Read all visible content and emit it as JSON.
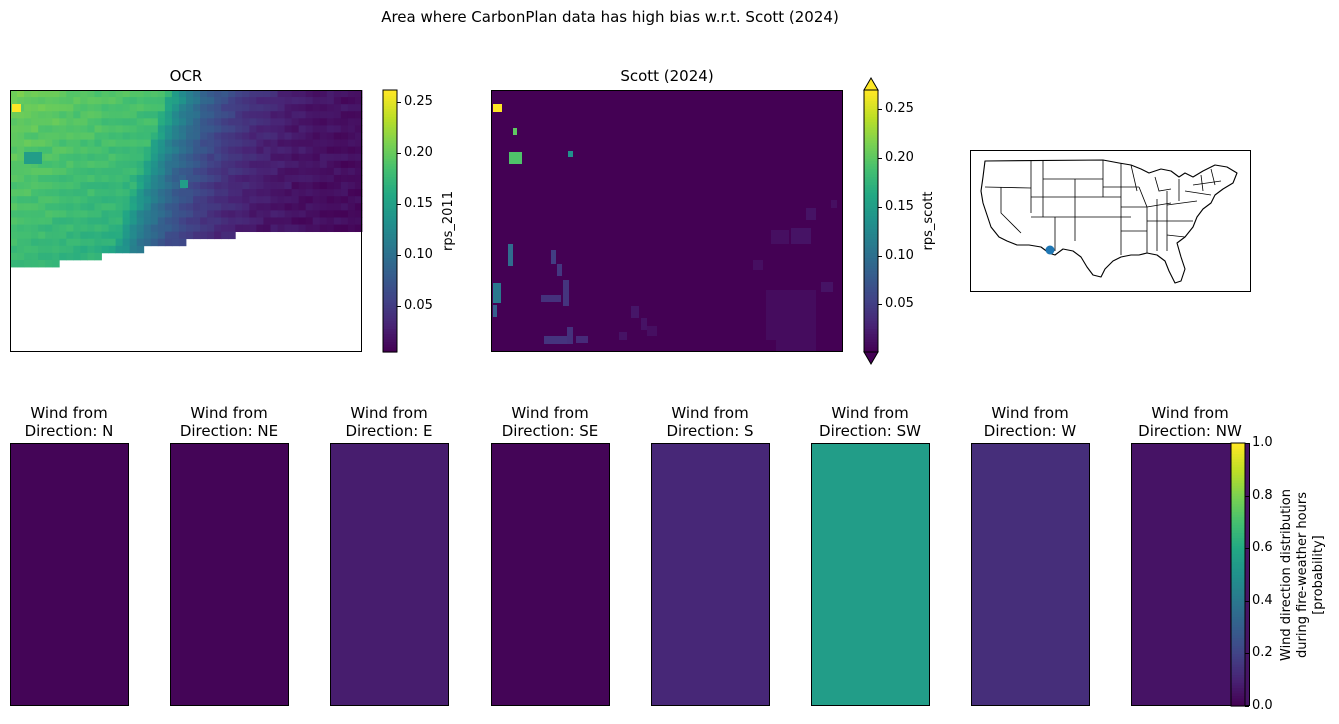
{
  "figure": {
    "title": "Area where CarbonPlan data has high bias w.r.t. Scott (2024)"
  },
  "colors": {
    "viridis": [
      "#440154",
      "#482475",
      "#414487",
      "#355f8d",
      "#2a788e",
      "#21918c",
      "#22a884",
      "#44bf70",
      "#7ad151",
      "#bddf26",
      "#fde725"
    ],
    "map_dot": "#1f77b4"
  },
  "chart_data": [
    {
      "type": "heatmap",
      "title": "OCR",
      "colorbar_label": "rps_2011",
      "colorbar_ticks": [
        "0.05",
        "0.10",
        "0.15",
        "0.20",
        "0.25"
      ],
      "colorbar_range": [
        0.005,
        0.262
      ],
      "description_of_pattern": "left half high (~0.18-0.22), gradient to low (~0.01) on right; bottom-left region masked (no data)",
      "hotspots": [
        {
          "value": 0.26
        }
      ],
      "grid": false
    },
    {
      "type": "heatmap",
      "title": "Scott (2024)",
      "colorbar_label": "rps_scott",
      "colorbar_ticks": [
        "0.05",
        "0.10",
        "0.15",
        "0.20",
        "0.25"
      ],
      "colorbar_range": [
        0.001,
        0.27
      ],
      "colorbar_extend": "both",
      "grid": false
    },
    {
      "type": "map",
      "title": "",
      "region": "Contiguous United States",
      "marker": "single point (southern Arizona / New Mexico border)"
    },
    {
      "type": "heatmap",
      "colorbar_label_lines": [
        "Wind direction distribution",
        "during fire-weather hours",
        "[probability]"
      ],
      "colorbar_ticks": [
        "0.0",
        "0.2",
        "0.4",
        "0.6",
        "0.8",
        "1.0"
      ],
      "colorbar_range": [
        0.0,
        1.0
      ],
      "panels": [
        {
          "title_l1": "Wind from",
          "title_l2": "Direction: N",
          "value": 0.01
        },
        {
          "title_l1": "Wind from",
          "title_l2": "Direction: NE",
          "value": 0.01
        },
        {
          "title_l1": "Wind from",
          "title_l2": "Direction: E",
          "value": 0.08
        },
        {
          "title_l1": "Wind from",
          "title_l2": "Direction: SE",
          "value": 0.01
        },
        {
          "title_l1": "Wind from",
          "title_l2": "Direction: S",
          "value": 0.11
        },
        {
          "title_l1": "Wind from",
          "title_l2": "Direction: SW",
          "value": 0.55
        },
        {
          "title_l1": "Wind from",
          "title_l2": "Direction: W",
          "value": 0.13
        },
        {
          "title_l1": "Wind from",
          "title_l2": "Direction: NW",
          "value": 0.05
        }
      ]
    }
  ]
}
